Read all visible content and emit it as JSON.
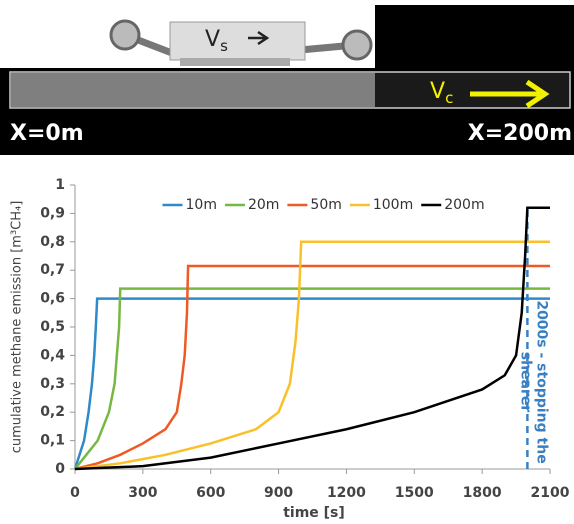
{
  "diagram": {
    "shearer_velocity": {
      "symbol": "V",
      "subscript": "s"
    },
    "conveyor_velocity": {
      "symbol": "V",
      "subscript": "c"
    },
    "start_label": "X=0m",
    "end_label": "X=200m"
  },
  "chart_data": {
    "type": "line",
    "xlabel": "time [s]",
    "ylabel": "cumulative methane emission [m³CH₄]",
    "xlim": [
      0,
      2100
    ],
    "xticks": [
      0,
      300,
      600,
      900,
      1200,
      1500,
      1800,
      2100
    ],
    "ylim": [
      0,
      1
    ],
    "yticks": [
      0,
      {
        "value": 0.1,
        "label": "0,1"
      },
      {
        "value": 0.2,
        "label": "0,2"
      },
      {
        "value": 0.3,
        "label": "0,3"
      },
      {
        "value": 0.4,
        "label": "0,4"
      },
      {
        "value": 0.5,
        "label": "0,5"
      },
      {
        "value": 0.6,
        "label": "0,6"
      },
      {
        "value": 0.7,
        "label": "0,7"
      },
      {
        "value": 0.8,
        "label": "0,8"
      },
      {
        "value": 0.9,
        "label": "0,9"
      },
      1
    ],
    "legend": "upper-center",
    "annotation": {
      "x": 2000,
      "lines": [
        "2000s - stopping the",
        "shearer"
      ],
      "color": "#3a7fc1"
    },
    "series": [
      {
        "name": "10m",
        "color": "#2e8bc8",
        "x": [
          0,
          20,
          40,
          60,
          75,
          85,
          92,
          98,
          2100
        ],
        "values": [
          0,
          0.05,
          0.1,
          0.2,
          0.3,
          0.4,
          0.5,
          0.6,
          0.6
        ]
      },
      {
        "name": "20m",
        "color": "#77b843",
        "x": [
          0,
          50,
          100,
          150,
          175,
          185,
          195,
          200,
          2100
        ],
        "values": [
          0,
          0.05,
          0.1,
          0.2,
          0.3,
          0.4,
          0.5,
          0.635,
          0.635
        ]
      },
      {
        "name": "50m",
        "color": "#ef5a24",
        "x": [
          0,
          100,
          200,
          300,
          400,
          450,
          470,
          485,
          495,
          500,
          2100
        ],
        "values": [
          0,
          0.02,
          0.05,
          0.09,
          0.14,
          0.2,
          0.3,
          0.4,
          0.55,
          0.715,
          0.715
        ]
      },
      {
        "name": "100m",
        "color": "#f9c02a",
        "x": [
          0,
          200,
          400,
          600,
          800,
          900,
          950,
          975,
          990,
          1000,
          2100
        ],
        "values": [
          0,
          0.02,
          0.05,
          0.09,
          0.14,
          0.2,
          0.3,
          0.45,
          0.6,
          0.8,
          0.8
        ]
      },
      {
        "name": "200m",
        "color": "#000000",
        "x": [
          0,
          300,
          600,
          900,
          1200,
          1500,
          1800,
          1900,
          1950,
          1975,
          1990,
          2000,
          2100
        ],
        "values": [
          0,
          0.01,
          0.04,
          0.09,
          0.14,
          0.2,
          0.28,
          0.33,
          0.4,
          0.55,
          0.75,
          0.92,
          0.92
        ]
      }
    ]
  }
}
